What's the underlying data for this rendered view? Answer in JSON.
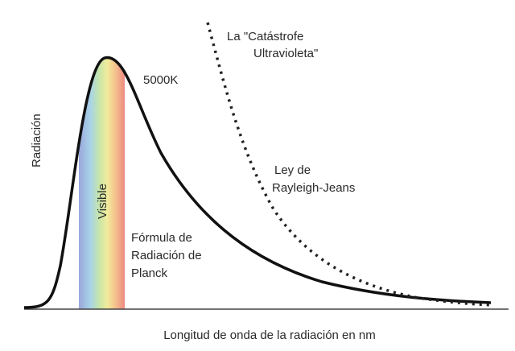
{
  "chart_data": {
    "type": "line",
    "x_label": "Longitud de onda de la radiación en nm",
    "y_label": "Radiación",
    "annotations": {
      "catastrophe": [
        "La \"Catástrofe",
        "Ultravioleta\""
      ],
      "temperature": [
        "5000K"
      ],
      "visible": [
        "Visible"
      ],
      "rayleigh_jeans": [
        "Ley de",
        "Rayleigh-Jeans"
      ],
      "planck": [
        "Fórmula de",
        "Radiación de",
        "Planck"
      ]
    }
  }
}
